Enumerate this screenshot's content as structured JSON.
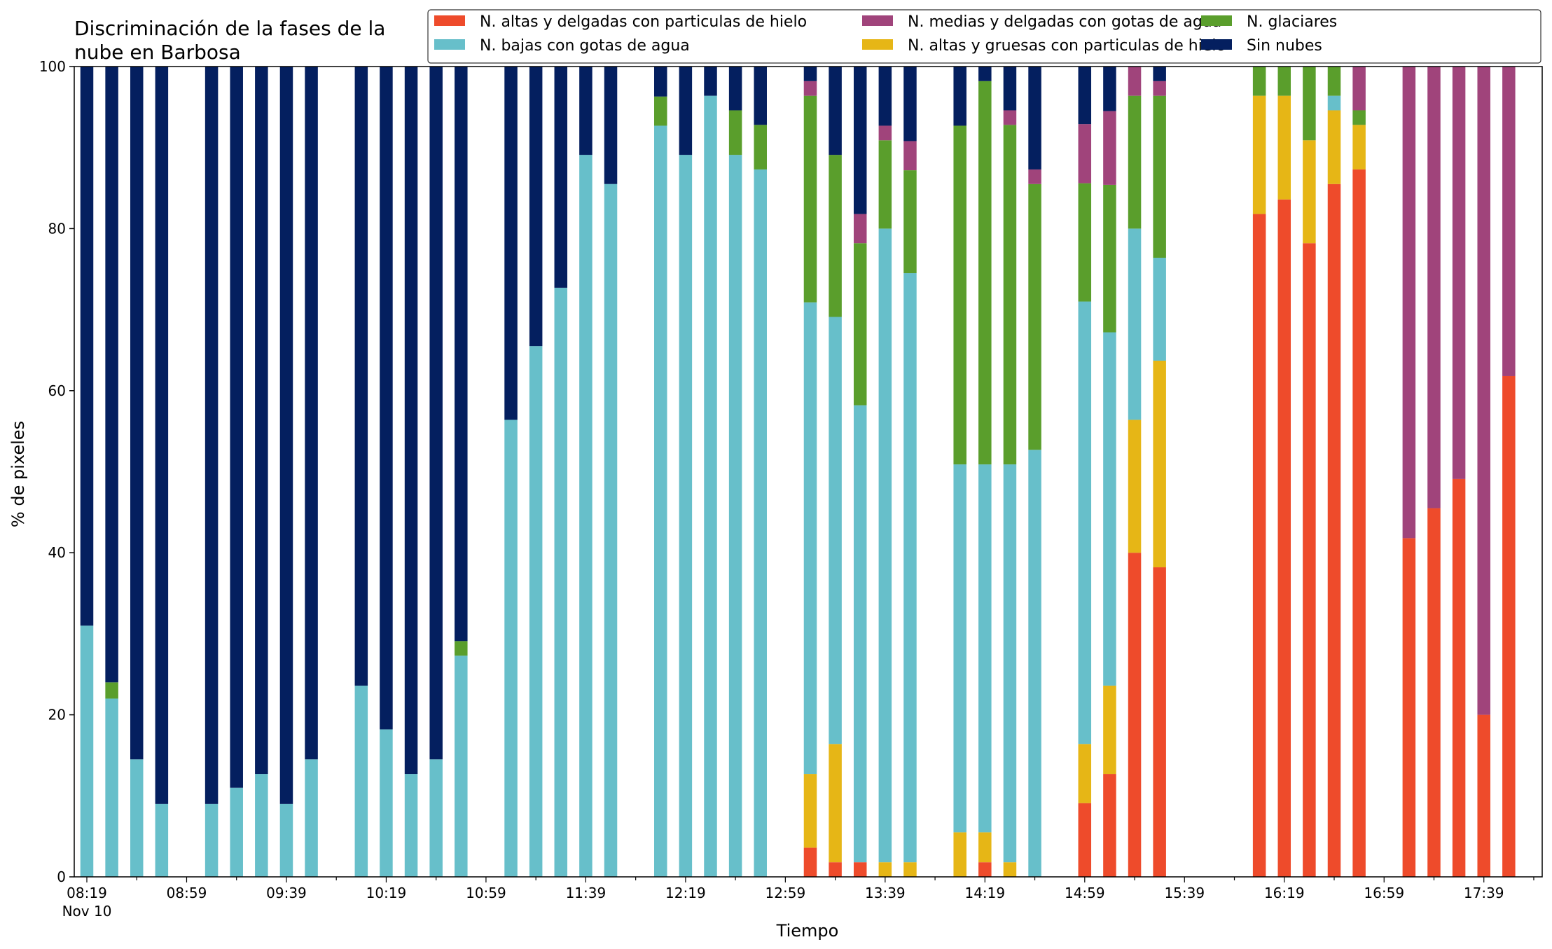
{
  "chart_data": {
    "type": "bar",
    "stacked": true,
    "title": "Discriminación de la fases de la nube en Barbosa",
    "xlabel": "Tiempo",
    "ylabel": "% de pixeles",
    "ylim": [
      0,
      100
    ],
    "yticks": [
      0,
      20,
      40,
      60,
      80,
      100
    ],
    "xtick_labels": [
      "08:19",
      "08:59",
      "09:39",
      "10:19",
      "10:59",
      "11:39",
      "12:19",
      "12:59",
      "13:39",
      "14:19",
      "14:59",
      "15:39",
      "16:19",
      "16:59",
      "17:39"
    ],
    "xtick_sublabel": "Nov 10",
    "legend_position": "top-right",
    "grid": false,
    "series": [
      {
        "name": "N. altas y delgadas con particulas de hielo",
        "color": "#ee4b2b"
      },
      {
        "name": "N. altas y gruesas con particulas de hielo",
        "color": "#e6b616"
      },
      {
        "name": "N. bajas con gotas de agua",
        "color": "#67bfca"
      },
      {
        "name": "N. glaciares",
        "color": "#5a9e2c"
      },
      {
        "name": "N. medias y delgadas con gotas de agua",
        "color": "#a0447b"
      },
      {
        "name": "Sin nubes",
        "color": "#041f5f"
      }
    ],
    "legend_order": [
      0,
      2,
      4,
      1,
      3,
      5
    ],
    "slots_total": 59,
    "bars": [
      {
        "slot": 0,
        "values": [
          0,
          0,
          31,
          0,
          0,
          69
        ]
      },
      {
        "slot": 1,
        "values": [
          0,
          0,
          22,
          2,
          0,
          76
        ]
      },
      {
        "slot": 2,
        "values": [
          0,
          0,
          14.5,
          0,
          0,
          85.5
        ]
      },
      {
        "slot": 3,
        "values": [
          0,
          0,
          9,
          0,
          0,
          91
        ]
      },
      {
        "slot": 5,
        "values": [
          0,
          0,
          9,
          0,
          0,
          91
        ]
      },
      {
        "slot": 6,
        "values": [
          0,
          0,
          11,
          0,
          0,
          89
        ]
      },
      {
        "slot": 7,
        "values": [
          0,
          0,
          12.7,
          0,
          0,
          87.3
        ]
      },
      {
        "slot": 8,
        "values": [
          0,
          0,
          9,
          0,
          0,
          91
        ]
      },
      {
        "slot": 9,
        "values": [
          0,
          0,
          14.5,
          0,
          0,
          85.5
        ]
      },
      {
        "slot": 11,
        "values": [
          0,
          0,
          23.6,
          0,
          0,
          76.4
        ]
      },
      {
        "slot": 12,
        "values": [
          0,
          0,
          18.2,
          0,
          0,
          81.8
        ]
      },
      {
        "slot": 13,
        "values": [
          0,
          0,
          12.7,
          0,
          0,
          87.3
        ]
      },
      {
        "slot": 14,
        "values": [
          0,
          0,
          14.5,
          0,
          0,
          85.5
        ]
      },
      {
        "slot": 15,
        "values": [
          0,
          0,
          27.3,
          1.8,
          0,
          70.9
        ]
      },
      {
        "slot": 17,
        "values": [
          0,
          0,
          56.4,
          0,
          0,
          43.6
        ]
      },
      {
        "slot": 18,
        "values": [
          0,
          0,
          65.5,
          0,
          0,
          34.5
        ]
      },
      {
        "slot": 19,
        "values": [
          0,
          0,
          72.7,
          0,
          0,
          27.3
        ]
      },
      {
        "slot": 20,
        "values": [
          0,
          0,
          89.1,
          0,
          0,
          10.9
        ]
      },
      {
        "slot": 21,
        "values": [
          0,
          0,
          85.5,
          0,
          0,
          14.5
        ]
      },
      {
        "slot": 23,
        "values": [
          0,
          0,
          92.7,
          3.6,
          0,
          3.7
        ]
      },
      {
        "slot": 24,
        "values": [
          0,
          0,
          89.1,
          0,
          0,
          10.9
        ]
      },
      {
        "slot": 25,
        "values": [
          0,
          0,
          96.4,
          0,
          0,
          3.6
        ]
      },
      {
        "slot": 26,
        "values": [
          0,
          0,
          89.1,
          5.5,
          0,
          5.4
        ]
      },
      {
        "slot": 27,
        "values": [
          0,
          0,
          87.3,
          5.5,
          0,
          7.2
        ]
      },
      {
        "slot": 29,
        "values": [
          3.6,
          9.1,
          58.2,
          25.5,
          1.8,
          1.8
        ]
      },
      {
        "slot": 30,
        "values": [
          1.8,
          14.6,
          52.7,
          20,
          0,
          10.9
        ]
      },
      {
        "slot": 31,
        "values": [
          1.8,
          0,
          56.4,
          20,
          3.6,
          18.2
        ]
      },
      {
        "slot": 32,
        "values": [
          0,
          1.8,
          78.2,
          10.9,
          1.8,
          7.3
        ]
      },
      {
        "slot": 33,
        "values": [
          0,
          1.8,
          72.7,
          12.7,
          3.6,
          9.2
        ]
      },
      {
        "slot": 35,
        "values": [
          0,
          5.5,
          45.4,
          41.8,
          0,
          7.3
        ]
      },
      {
        "slot": 36,
        "values": [
          1.8,
          3.7,
          45.4,
          47.3,
          0,
          1.8
        ]
      },
      {
        "slot": 37,
        "values": [
          0,
          1.8,
          49.1,
          41.9,
          1.8,
          5.4
        ]
      },
      {
        "slot": 38,
        "values": [
          0,
          0,
          52.7,
          32.8,
          1.8,
          12.7
        ]
      },
      {
        "slot": 40,
        "values": [
          9.1,
          7.3,
          54.6,
          14.6,
          7.3,
          7.1
        ]
      },
      {
        "slot": 41,
        "values": [
          12.7,
          10.9,
          43.6,
          18.2,
          9.1,
          5.5
        ]
      },
      {
        "slot": 42,
        "values": [
          40,
          16.4,
          23.6,
          16.4,
          3.6,
          0
        ]
      },
      {
        "slot": 43,
        "values": [
          38.2,
          25.5,
          12.7,
          20,
          1.8,
          1.8
        ]
      },
      {
        "slot": 47,
        "values": [
          81.8,
          14.6,
          0,
          3.6,
          0,
          0
        ]
      },
      {
        "slot": 48,
        "values": [
          83.6,
          12.8,
          0,
          3.6,
          0,
          0
        ]
      },
      {
        "slot": 49,
        "values": [
          78.2,
          12.7,
          0,
          9.1,
          0,
          0
        ]
      },
      {
        "slot": 50,
        "values": [
          85.5,
          9.1,
          1.8,
          3.6,
          0,
          0
        ]
      },
      {
        "slot": 51,
        "values": [
          87.3,
          5.5,
          0,
          1.8,
          5.4,
          0
        ]
      },
      {
        "slot": 53,
        "values": [
          41.8,
          0,
          0,
          0,
          58.2,
          0
        ]
      },
      {
        "slot": 54,
        "values": [
          45.5,
          0,
          0,
          0,
          54.5,
          0
        ]
      },
      {
        "slot": 55,
        "values": [
          49.1,
          0,
          0,
          0,
          50.9,
          0
        ]
      },
      {
        "slot": 56,
        "values": [
          20,
          0,
          0,
          0,
          80,
          0
        ]
      },
      {
        "slot": 57,
        "values": [
          61.8,
          0,
          0,
          0,
          38.2,
          0
        ]
      }
    ]
  }
}
